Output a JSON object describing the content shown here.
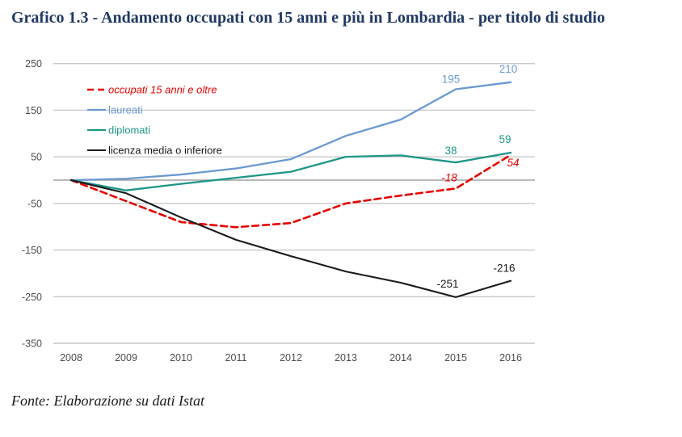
{
  "page": {
    "title": "Grafico 1.3 - Andamento occupati con 15 anni e più in Lombardia - per titolo di studio",
    "source_note": "Fonte: Elaborazione su dati Istat"
  },
  "colors": {
    "title": "#203864",
    "grid": "#c9c9c9",
    "zero_axis": "#a0a0a0",
    "tick_text": "#4d4d4d",
    "background": "#ffffff"
  },
  "chart_data": {
    "type": "line",
    "title": "Grafico 1.3 - Andamento occupati con 15 anni e più in Lombardia - per titolo di studio",
    "xlabel": "",
    "ylabel": "",
    "categories": [
      2008,
      2009,
      2010,
      2011,
      2012,
      2013,
      2014,
      2015,
      2016
    ],
    "yticks": [
      250,
      150,
      50,
      -50,
      -150,
      -250,
      -350
    ],
    "ylim": [
      -350,
      250
    ],
    "grid": true,
    "zero_line": true,
    "legend_position": "top-left-inside",
    "series": [
      {
        "name": "occupati 15 anni e oltre",
        "color": "#e60000",
        "dashed": true,
        "italic": true,
        "width": 2.6,
        "values": [
          0,
          -45,
          -90,
          -101,
          -92,
          -50,
          -33,
          -18,
          54
        ],
        "point_labels": [
          {
            "year": 2015,
            "text": "-18",
            "dx": -8,
            "dy": -9
          },
          {
            "year": 2016,
            "text": "54",
            "dx": 3,
            "dy": 14
          }
        ]
      },
      {
        "name": "laureati",
        "color": "#6a99d0",
        "dashed": false,
        "italic": false,
        "width": 2.3,
        "values": [
          0,
          3,
          12,
          25,
          45,
          95,
          130,
          195,
          210
        ],
        "point_labels": [
          {
            "year": 2015,
            "text": "195",
            "dx": -6,
            "dy": -8
          },
          {
            "year": 2016,
            "text": "210",
            "dx": -3,
            "dy": -12
          }
        ]
      },
      {
        "name": "diplomati",
        "color": "#1e9688",
        "dashed": false,
        "italic": false,
        "width": 2.3,
        "values": [
          0,
          -22,
          -8,
          5,
          18,
          50,
          53,
          38,
          59
        ],
        "point_labels": [
          {
            "year": 2015,
            "text": "38",
            "dx": -6,
            "dy": -10
          },
          {
            "year": 2016,
            "text": "59",
            "dx": -7,
            "dy": -12
          }
        ]
      },
      {
        "name": "licenza media o inferiore",
        "color": "#1a1a1a",
        "dashed": false,
        "italic": false,
        "width": 2.1,
        "values": [
          0,
          -28,
          -80,
          -128,
          -163,
          -196,
          -220,
          -251,
          -216
        ],
        "point_labels": [
          {
            "year": 2015,
            "text": "-251",
            "dx": -10,
            "dy": -12
          },
          {
            "year": 2016,
            "text": "-216",
            "dx": -8,
            "dy": -11
          }
        ]
      }
    ]
  }
}
